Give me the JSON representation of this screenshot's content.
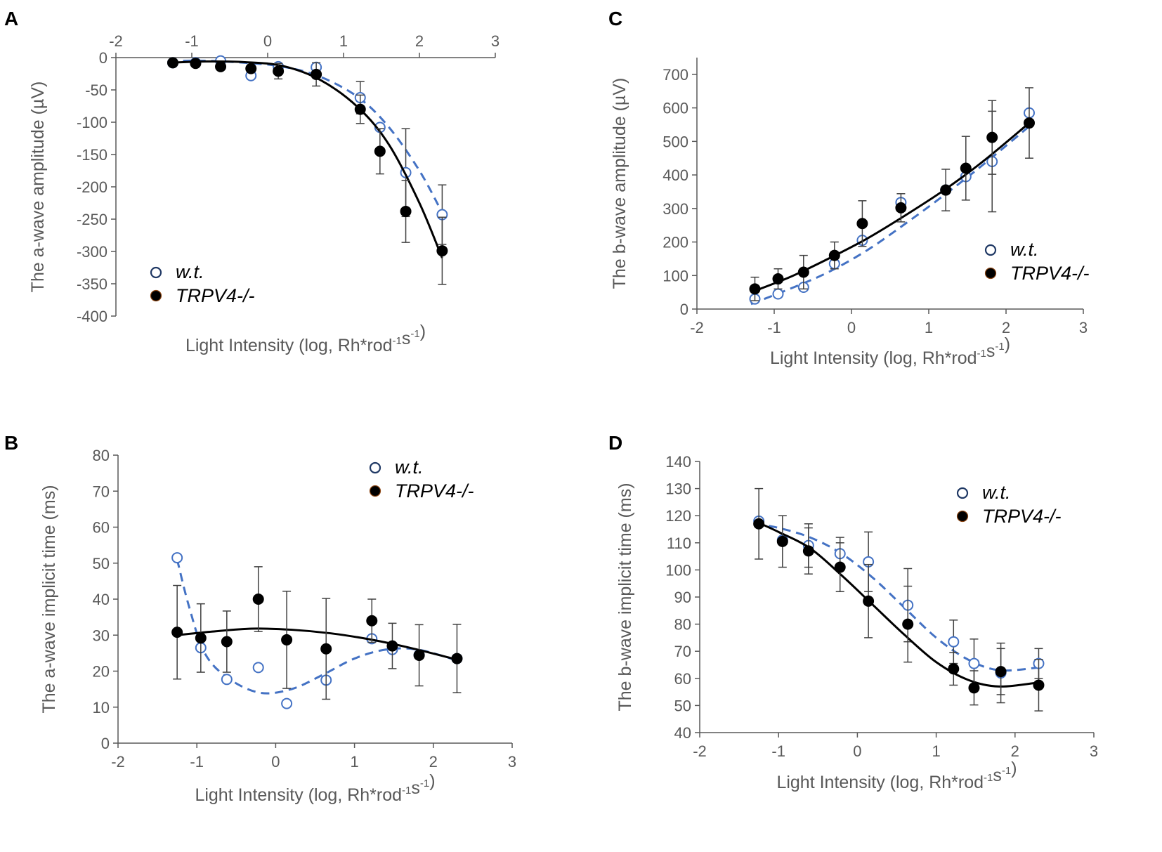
{
  "colors": {
    "wt": "#4472C4",
    "ko": "#000000",
    "axis": "#595959",
    "errorbar": "#404040"
  },
  "chart_data": [
    {
      "panel": "A",
      "type": "scatter",
      "ylabel": "The a-wave amplitude (µV)",
      "xlabel_main": "Light Intensity (log, Rh*rod",
      "xlabel_sup1": "-1",
      "xlabel_mid": "s",
      "xlabel_sup2": "-1",
      "xlabel_end": ")",
      "xlim": [
        -2,
        3
      ],
      "ylim": [
        -400,
        0
      ],
      "x_axis_position": "top",
      "xticks": [
        -2,
        -1,
        0,
        1,
        2,
        3
      ],
      "yticks": [
        0,
        -50,
        -100,
        -150,
        -200,
        -250,
        -300,
        -350,
        -400
      ],
      "legend": {
        "position": "lower-left",
        "labels": [
          "w.t.",
          "TRPV4-/-"
        ]
      },
      "series": [
        {
          "name": "w.t.",
          "style": "open-circle-dashed",
          "x": [
            -1.25,
            -0.95,
            -0.62,
            -0.22,
            0.14,
            0.64,
            1.22,
            1.48,
            1.82,
            2.3
          ],
          "y": [
            -8,
            -8,
            -5,
            -28,
            -14,
            -15,
            -62,
            -108,
            -178,
            -243
          ],
          "err": [
            0,
            0,
            0,
            0,
            0,
            0,
            25,
            0,
            68,
            46
          ],
          "fit_x": [
            -1.3,
            -0.8,
            -0.3,
            0.2,
            0.7,
            1.2,
            1.6,
            2.0,
            2.3
          ],
          "fit_y": [
            -5,
            -5,
            -8,
            -14,
            -30,
            -62,
            -108,
            -175,
            -240
          ]
        },
        {
          "name": "TRPV4-/-",
          "style": "filled-circle-solid",
          "x": [
            -1.25,
            -0.95,
            -0.62,
            -0.22,
            0.14,
            0.64,
            1.22,
            1.48,
            1.82,
            2.3
          ],
          "y": [
            -8,
            -9,
            -14,
            -17,
            -21,
            -26,
            -80,
            -145,
            -238,
            -299
          ],
          "err": [
            0,
            0,
            0,
            0,
            12,
            18,
            22,
            35,
            48,
            52
          ],
          "fit_x": [
            -1.3,
            -0.8,
            -0.3,
            0.2,
            0.7,
            1.2,
            1.6,
            2.0,
            2.3
          ],
          "fit_y": [
            -8,
            -6,
            -7,
            -13,
            -35,
            -78,
            -135,
            -225,
            -310
          ]
        }
      ]
    },
    {
      "panel": "B",
      "type": "scatter",
      "ylabel": "The a-wave implicit time (ms)",
      "xlabel_main": "Light Intensity (log, Rh*rod",
      "xlabel_sup1": "-1",
      "xlabel_mid": "s",
      "xlabel_sup2": "-1",
      "xlabel_end": ")",
      "xlim": [
        -2,
        3
      ],
      "ylim": [
        0,
        80
      ],
      "x_axis_position": "bottom",
      "xticks": [
        -2,
        -1,
        0,
        1,
        2,
        3
      ],
      "yticks": [
        0,
        10,
        20,
        30,
        40,
        50,
        60,
        70,
        80
      ],
      "legend": {
        "position": "top-right",
        "labels": [
          "w.t.",
          "TRPV4-/-"
        ]
      },
      "series": [
        {
          "name": "w.t.",
          "style": "open-circle-dashed",
          "x": [
            -1.25,
            -0.95,
            -0.62,
            -0.22,
            0.14,
            0.64,
            1.22,
            1.48,
            1.82,
            2.3
          ],
          "y": [
            51.5,
            26.5,
            17.7,
            21,
            11,
            17.5,
            29,
            26,
            24.5,
            23.5
          ],
          "err": [
            0,
            0,
            0,
            0,
            0,
            0,
            0,
            0,
            0,
            0
          ],
          "fit_x": [
            -1.25,
            -1.1,
            -0.9,
            -0.6,
            -0.2,
            0.2,
            0.6,
            1.0,
            1.4,
            1.8,
            2.3
          ],
          "fit_y": [
            51,
            38,
            25,
            18,
            14,
            15,
            19,
            23.5,
            26,
            26,
            23
          ]
        },
        {
          "name": "TRPV4-/-",
          "style": "filled-circle-solid",
          "x": [
            -1.25,
            -0.95,
            -0.62,
            -0.22,
            0.14,
            0.64,
            1.22,
            1.48,
            1.82,
            2.3
          ],
          "y": [
            30.8,
            29.2,
            28.2,
            40,
            28.7,
            26.2,
            34,
            27,
            24.4,
            23.5
          ],
          "err": [
            13,
            9.5,
            8.5,
            9,
            13.5,
            14,
            6,
            6.3,
            8.5,
            9.5
          ],
          "fit_x": [
            -1.25,
            -0.8,
            -0.3,
            0.2,
            0.7,
            1.2,
            1.7,
            2.3
          ],
          "fit_y": [
            30,
            31,
            31.8,
            31.5,
            30.5,
            28.8,
            26.5,
            23.2
          ]
        }
      ]
    },
    {
      "panel": "C",
      "type": "scatter",
      "ylabel": "The b-wave amplitude (µV)",
      "xlabel_main": "Light Intensity (log, Rh*rod",
      "xlabel_sup1": "-1",
      "xlabel_mid": "s",
      "xlabel_sup2": "-1",
      "xlabel_end": ")",
      "xlim": [
        -2,
        3
      ],
      "ylim": [
        0,
        750
      ],
      "x_axis_position": "bottom",
      "xticks": [
        -2,
        -1,
        0,
        1,
        2,
        3
      ],
      "yticks": [
        0,
        100,
        200,
        300,
        400,
        500,
        600,
        700
      ],
      "legend": {
        "position": "right",
        "labels": [
          "w.t.",
          "TRPV4-/-"
        ]
      },
      "series": [
        {
          "name": "w.t.",
          "style": "open-circle-dashed",
          "x": [
            -1.25,
            -0.95,
            -0.62,
            -0.22,
            0.14,
            0.64,
            1.22,
            1.48,
            1.82,
            2.3
          ],
          "y": [
            30,
            45,
            65,
            135,
            205,
            318,
            355,
            395,
            440,
            585
          ],
          "err": [
            0,
            0,
            0,
            0,
            0,
            0,
            0,
            0,
            150,
            0
          ],
          "fit_x": [
            -1.3,
            -0.8,
            -0.3,
            0.2,
            0.7,
            1.2,
            1.7,
            2.3
          ],
          "fit_y": [
            15,
            60,
            110,
            175,
            255,
            340,
            430,
            545
          ]
        },
        {
          "name": "TRPV4-/-",
          "style": "filled-circle-solid",
          "x": [
            -1.25,
            -0.95,
            -0.62,
            -0.22,
            0.14,
            0.64,
            1.22,
            1.48,
            1.82,
            2.3
          ],
          "y": [
            60,
            90,
            110,
            160,
            255,
            302,
            355,
            420,
            512,
            555
          ],
          "err": [
            35,
            30,
            50,
            40,
            68,
            42,
            62,
            95,
            110,
            105
          ],
          "fit_x": [
            -1.3,
            -0.8,
            -0.3,
            0.2,
            0.7,
            1.2,
            1.7,
            2.3
          ],
          "fit_y": [
            50,
            95,
            150,
            210,
            280,
            355,
            440,
            555
          ]
        }
      ]
    },
    {
      "panel": "D",
      "type": "scatter",
      "ylabel": "The b-wave implicit time (ms)",
      "xlabel_main": "Light Intensity (log, Rh*rod",
      "xlabel_sup1": "-1",
      "xlabel_mid": "s",
      "xlabel_sup2": "-1",
      "xlabel_end": ")",
      "xlim": [
        -2,
        3
      ],
      "ylim": [
        40,
        140
      ],
      "x_axis_position": "bottom",
      "xticks": [
        -2,
        -1,
        0,
        1,
        2,
        3
      ],
      "yticks": [
        40,
        50,
        60,
        70,
        80,
        90,
        100,
        110,
        120,
        130,
        140
      ],
      "legend": {
        "position": "top-right",
        "labels": [
          "w.t.",
          "TRPV4-/-"
        ]
      },
      "series": [
        {
          "name": "w.t.",
          "style": "open-circle-dashed",
          "x": [
            -1.25,
            -0.95,
            -0.62,
            -0.22,
            0.14,
            0.64,
            1.22,
            1.48,
            1.82,
            2.3
          ],
          "y": [
            118,
            111,
            109,
            106,
            103,
            87,
            73.5,
            65.5,
            62,
            65.5
          ],
          "err": [
            0,
            0,
            8,
            6,
            11,
            13.5,
            8,
            9,
            11,
            5.5
          ],
          "fit_x": [
            -1.3,
            -1.0,
            -0.6,
            -0.2,
            0.2,
            0.6,
            1.0,
            1.4,
            1.8,
            2.3
          ],
          "fit_y": [
            117,
            115.5,
            112,
            106,
            97,
            86,
            75,
            67,
            63,
            64
          ]
        },
        {
          "name": "TRPV4-/-",
          "style": "filled-circle-solid",
          "x": [
            -1.25,
            -0.95,
            -0.62,
            -0.22,
            0.14,
            0.64,
            1.22,
            1.48,
            1.82,
            2.3
          ],
          "y": [
            117,
            110.5,
            107,
            101,
            88.5,
            80,
            63.5,
            56.5,
            62.5,
            57.5
          ],
          "err": [
            13,
            9.5,
            8.5,
            9,
            13.5,
            14,
            6,
            6.3,
            8.5,
            9.5
          ],
          "fit_x": [
            -1.3,
            -1.0,
            -0.6,
            -0.2,
            0.2,
            0.6,
            1.0,
            1.4,
            1.8,
            2.3
          ],
          "fit_y": [
            118,
            114,
            108,
            98,
            87,
            76,
            66,
            59.5,
            57,
            58.5
          ]
        }
      ]
    }
  ]
}
